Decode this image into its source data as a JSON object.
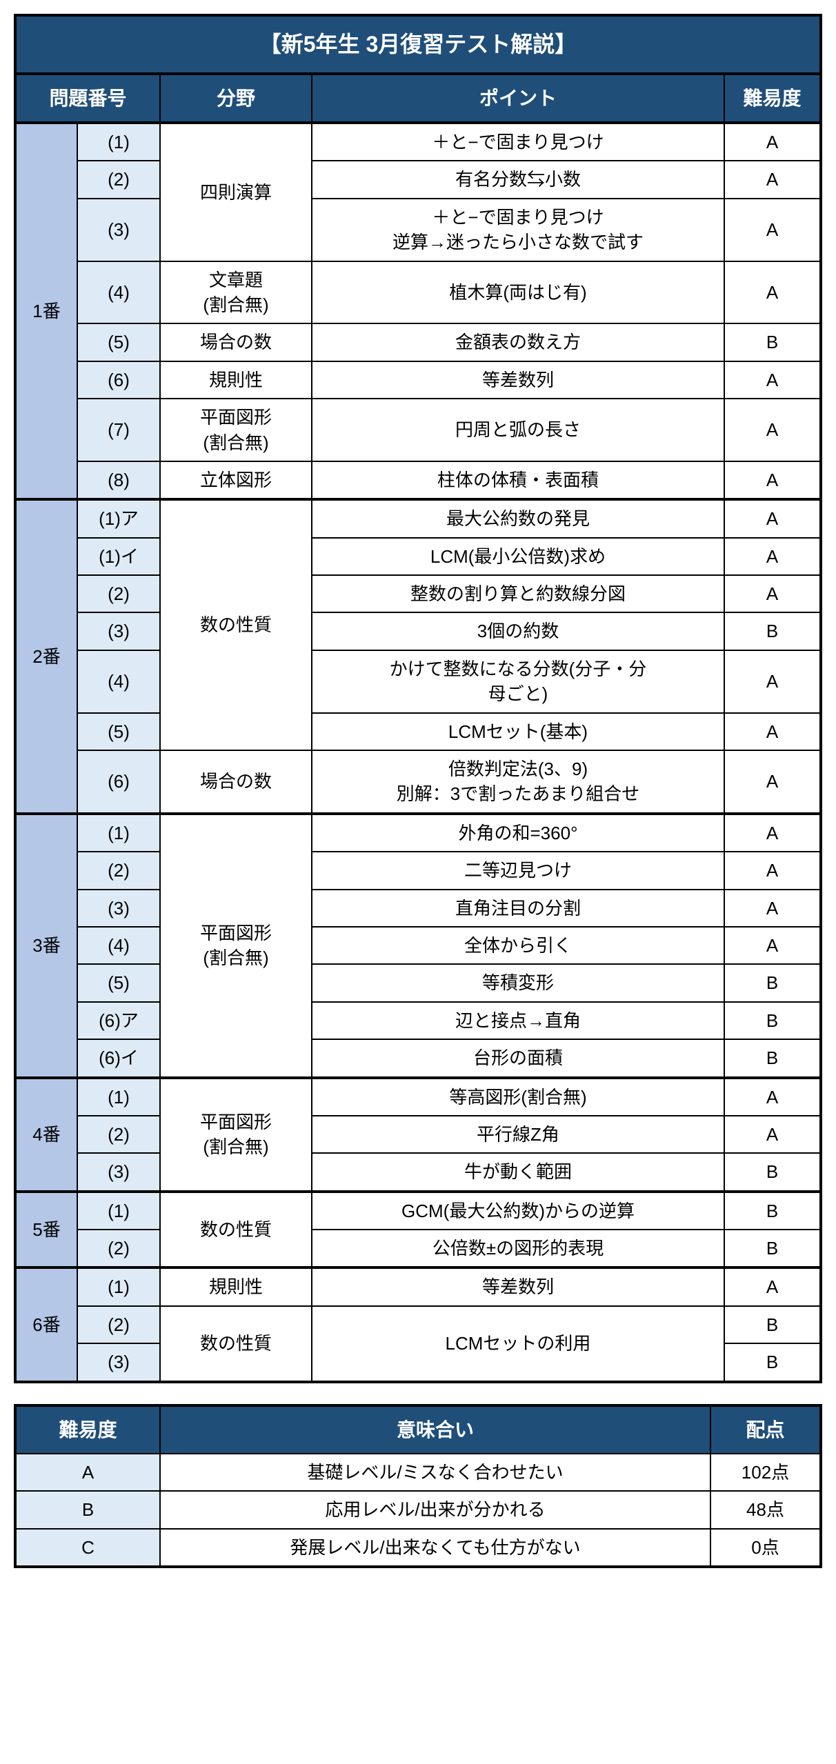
{
  "colors": {
    "header_bg": "#1f4e79",
    "header_text": "#ffffff",
    "problem_num_bg": "#b4c7e7",
    "sub_num_bg": "#deebf6",
    "cell_bg": "#ffffff",
    "border": "#000000"
  },
  "main_table": {
    "title": "【新5年生 3月復習テスト解説】",
    "headers": {
      "problem_num": "問題番号",
      "field": "分野",
      "point": "ポイント",
      "difficulty": "難易度"
    },
    "sections": [
      {
        "num": "1番",
        "rows": [
          {
            "sub": "(1)",
            "field": "四則演算",
            "field_span": 3,
            "point": "＋と−で固まり見つけ",
            "difficulty": "A"
          },
          {
            "sub": "(2)",
            "point": "有名分数⇆小数",
            "difficulty": "A"
          },
          {
            "sub": "(3)",
            "point": "＋と−で固まり見つけ\n逆算→迷ったら小さな数で試す",
            "difficulty": "A"
          },
          {
            "sub": "(4)",
            "field": "文章題\n(割合無)",
            "field_span": 1,
            "point": "植木算(両はじ有)",
            "difficulty": "A"
          },
          {
            "sub": "(5)",
            "field": "場合の数",
            "field_span": 1,
            "point": "金額表の数え方",
            "difficulty": "B"
          },
          {
            "sub": "(6)",
            "field": "規則性",
            "field_span": 1,
            "point": "等差数列",
            "difficulty": "A"
          },
          {
            "sub": "(7)",
            "field": "平面図形\n(割合無)",
            "field_span": 1,
            "point": "円周と弧の長さ",
            "difficulty": "A"
          },
          {
            "sub": "(8)",
            "field": "立体図形",
            "field_span": 1,
            "point": "柱体の体積・表面積",
            "difficulty": "A"
          }
        ]
      },
      {
        "num": "2番",
        "rows": [
          {
            "sub": "(1)ア",
            "field": "数の性質",
            "field_span": 6,
            "point": "最大公約数の発見",
            "difficulty": "A"
          },
          {
            "sub": "(1)イ",
            "point": "LCM(最小公倍数)求め",
            "difficulty": "A"
          },
          {
            "sub": "(2)",
            "point": "整数の割り算と約数線分図",
            "difficulty": "A"
          },
          {
            "sub": "(3)",
            "point": "3個の約数",
            "difficulty": "B"
          },
          {
            "sub": "(4)",
            "point": "かけて整数になる分数(分子・分\n母ごと)",
            "difficulty": "A"
          },
          {
            "sub": "(5)",
            "point": "LCMセット(基本)",
            "difficulty": "A"
          },
          {
            "sub": "(6)",
            "field": "場合の数",
            "field_span": 1,
            "point": "倍数判定法(3、9)\n別解：3で割ったあまり組合せ",
            "difficulty": "A"
          }
        ]
      },
      {
        "num": "3番",
        "rows": [
          {
            "sub": "(1)",
            "field": "平面図形\n(割合無)",
            "field_span": 7,
            "point": "外角の和=360°",
            "difficulty": "A"
          },
          {
            "sub": "(2)",
            "point": "二等辺見つけ",
            "difficulty": "A"
          },
          {
            "sub": "(3)",
            "point": "直角注目の分割",
            "difficulty": "A"
          },
          {
            "sub": "(4)",
            "point": "全体から引く",
            "difficulty": "A"
          },
          {
            "sub": "(5)",
            "point": "等積変形",
            "difficulty": "B"
          },
          {
            "sub": "(6)ア",
            "point": "辺と接点→直角",
            "difficulty": "B"
          },
          {
            "sub": "(6)イ",
            "point": "台形の面積",
            "difficulty": "B"
          }
        ]
      },
      {
        "num": "4番",
        "rows": [
          {
            "sub": "(1)",
            "field": "平面図形\n(割合無)",
            "field_span": 3,
            "point": "等高図形(割合無)",
            "difficulty": "A"
          },
          {
            "sub": "(2)",
            "point": "平行線Z角",
            "difficulty": "A"
          },
          {
            "sub": "(3)",
            "point": "牛が動く範囲",
            "difficulty": "B"
          }
        ]
      },
      {
        "num": "5番",
        "rows": [
          {
            "sub": "(1)",
            "field": "数の性質",
            "field_span": 2,
            "point": "GCM(最大公約数)からの逆算",
            "difficulty": "B"
          },
          {
            "sub": "(2)",
            "point": "公倍数±の図形的表現",
            "difficulty": "B"
          }
        ]
      },
      {
        "num": "6番",
        "rows": [
          {
            "sub": "(1)",
            "field": "規則性",
            "field_span": 1,
            "point": "等差数列",
            "difficulty": "A"
          },
          {
            "sub": "(2)",
            "field": "数の性質",
            "field_span": 2,
            "point": "LCMセットの利用",
            "point_span": 2,
            "difficulty": "B"
          },
          {
            "sub": "(3)",
            "difficulty": "B"
          }
        ]
      }
    ]
  },
  "legend_table": {
    "headers": {
      "difficulty": "難易度",
      "meaning": "意味合い",
      "score": "配点"
    },
    "rows": [
      {
        "difficulty": "A",
        "meaning": "基礎レベル/ミスなく合わせたい",
        "score": "102点"
      },
      {
        "difficulty": "B",
        "meaning": "応用レベル/出来が分かれる",
        "score": "48点"
      },
      {
        "difficulty": "C",
        "meaning": "発展レベル/出来なくても仕方がない",
        "score": "0点"
      }
    ]
  }
}
